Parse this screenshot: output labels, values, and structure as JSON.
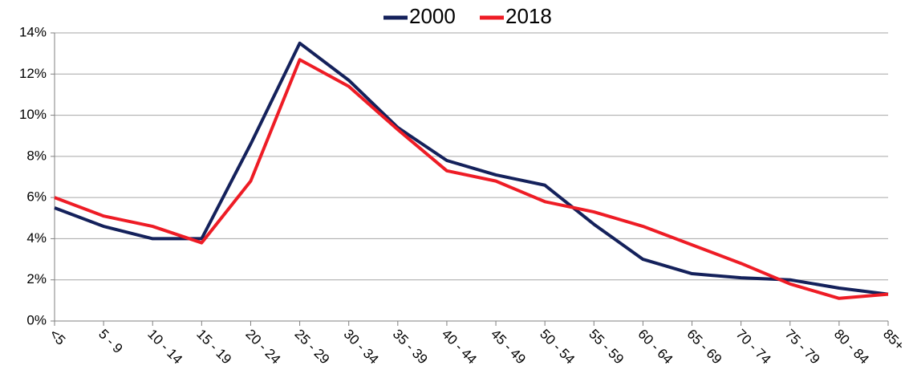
{
  "chart_data": {
    "type": "line",
    "categories": [
      "<5",
      "5 - 9",
      "10 - 14",
      "15 - 19",
      "20 - 24",
      "25 - 29",
      "30 - 34",
      "35 - 39",
      "40 - 44",
      "45 - 49",
      "50 - 54",
      "55 - 59",
      "60 - 64",
      "65 - 69",
      "70 - 74",
      "75 - 79",
      "80 - 84",
      "85+"
    ],
    "series": [
      {
        "name": "2000",
        "color": "#14215b",
        "values": [
          5.5,
          4.6,
          4.0,
          4.0,
          8.6,
          13.5,
          11.7,
          9.4,
          7.8,
          7.1,
          6.6,
          4.7,
          3.0,
          2.3,
          2.1,
          2.0,
          1.6,
          1.3
        ]
      },
      {
        "name": "2018",
        "color": "#ee1c25",
        "values": [
          6.0,
          5.1,
          4.6,
          3.8,
          6.8,
          12.7,
          11.4,
          9.3,
          7.3,
          6.8,
          5.8,
          5.3,
          4.6,
          3.7,
          2.8,
          1.8,
          1.1,
          1.3
        ]
      }
    ],
    "ylim": [
      0,
      14
    ],
    "yticks": [
      {
        "value": 0,
        "label": "0%"
      },
      {
        "value": 2,
        "label": "2%"
      },
      {
        "value": 4,
        "label": "4%"
      },
      {
        "value": 6,
        "label": "6%"
      },
      {
        "value": 8,
        "label": "8%"
      },
      {
        "value": 10,
        "label": "10%"
      },
      {
        "value": 12,
        "label": "12%"
      },
      {
        "value": 14,
        "label": "14%"
      }
    ],
    "grid": true,
    "legend": "top"
  }
}
